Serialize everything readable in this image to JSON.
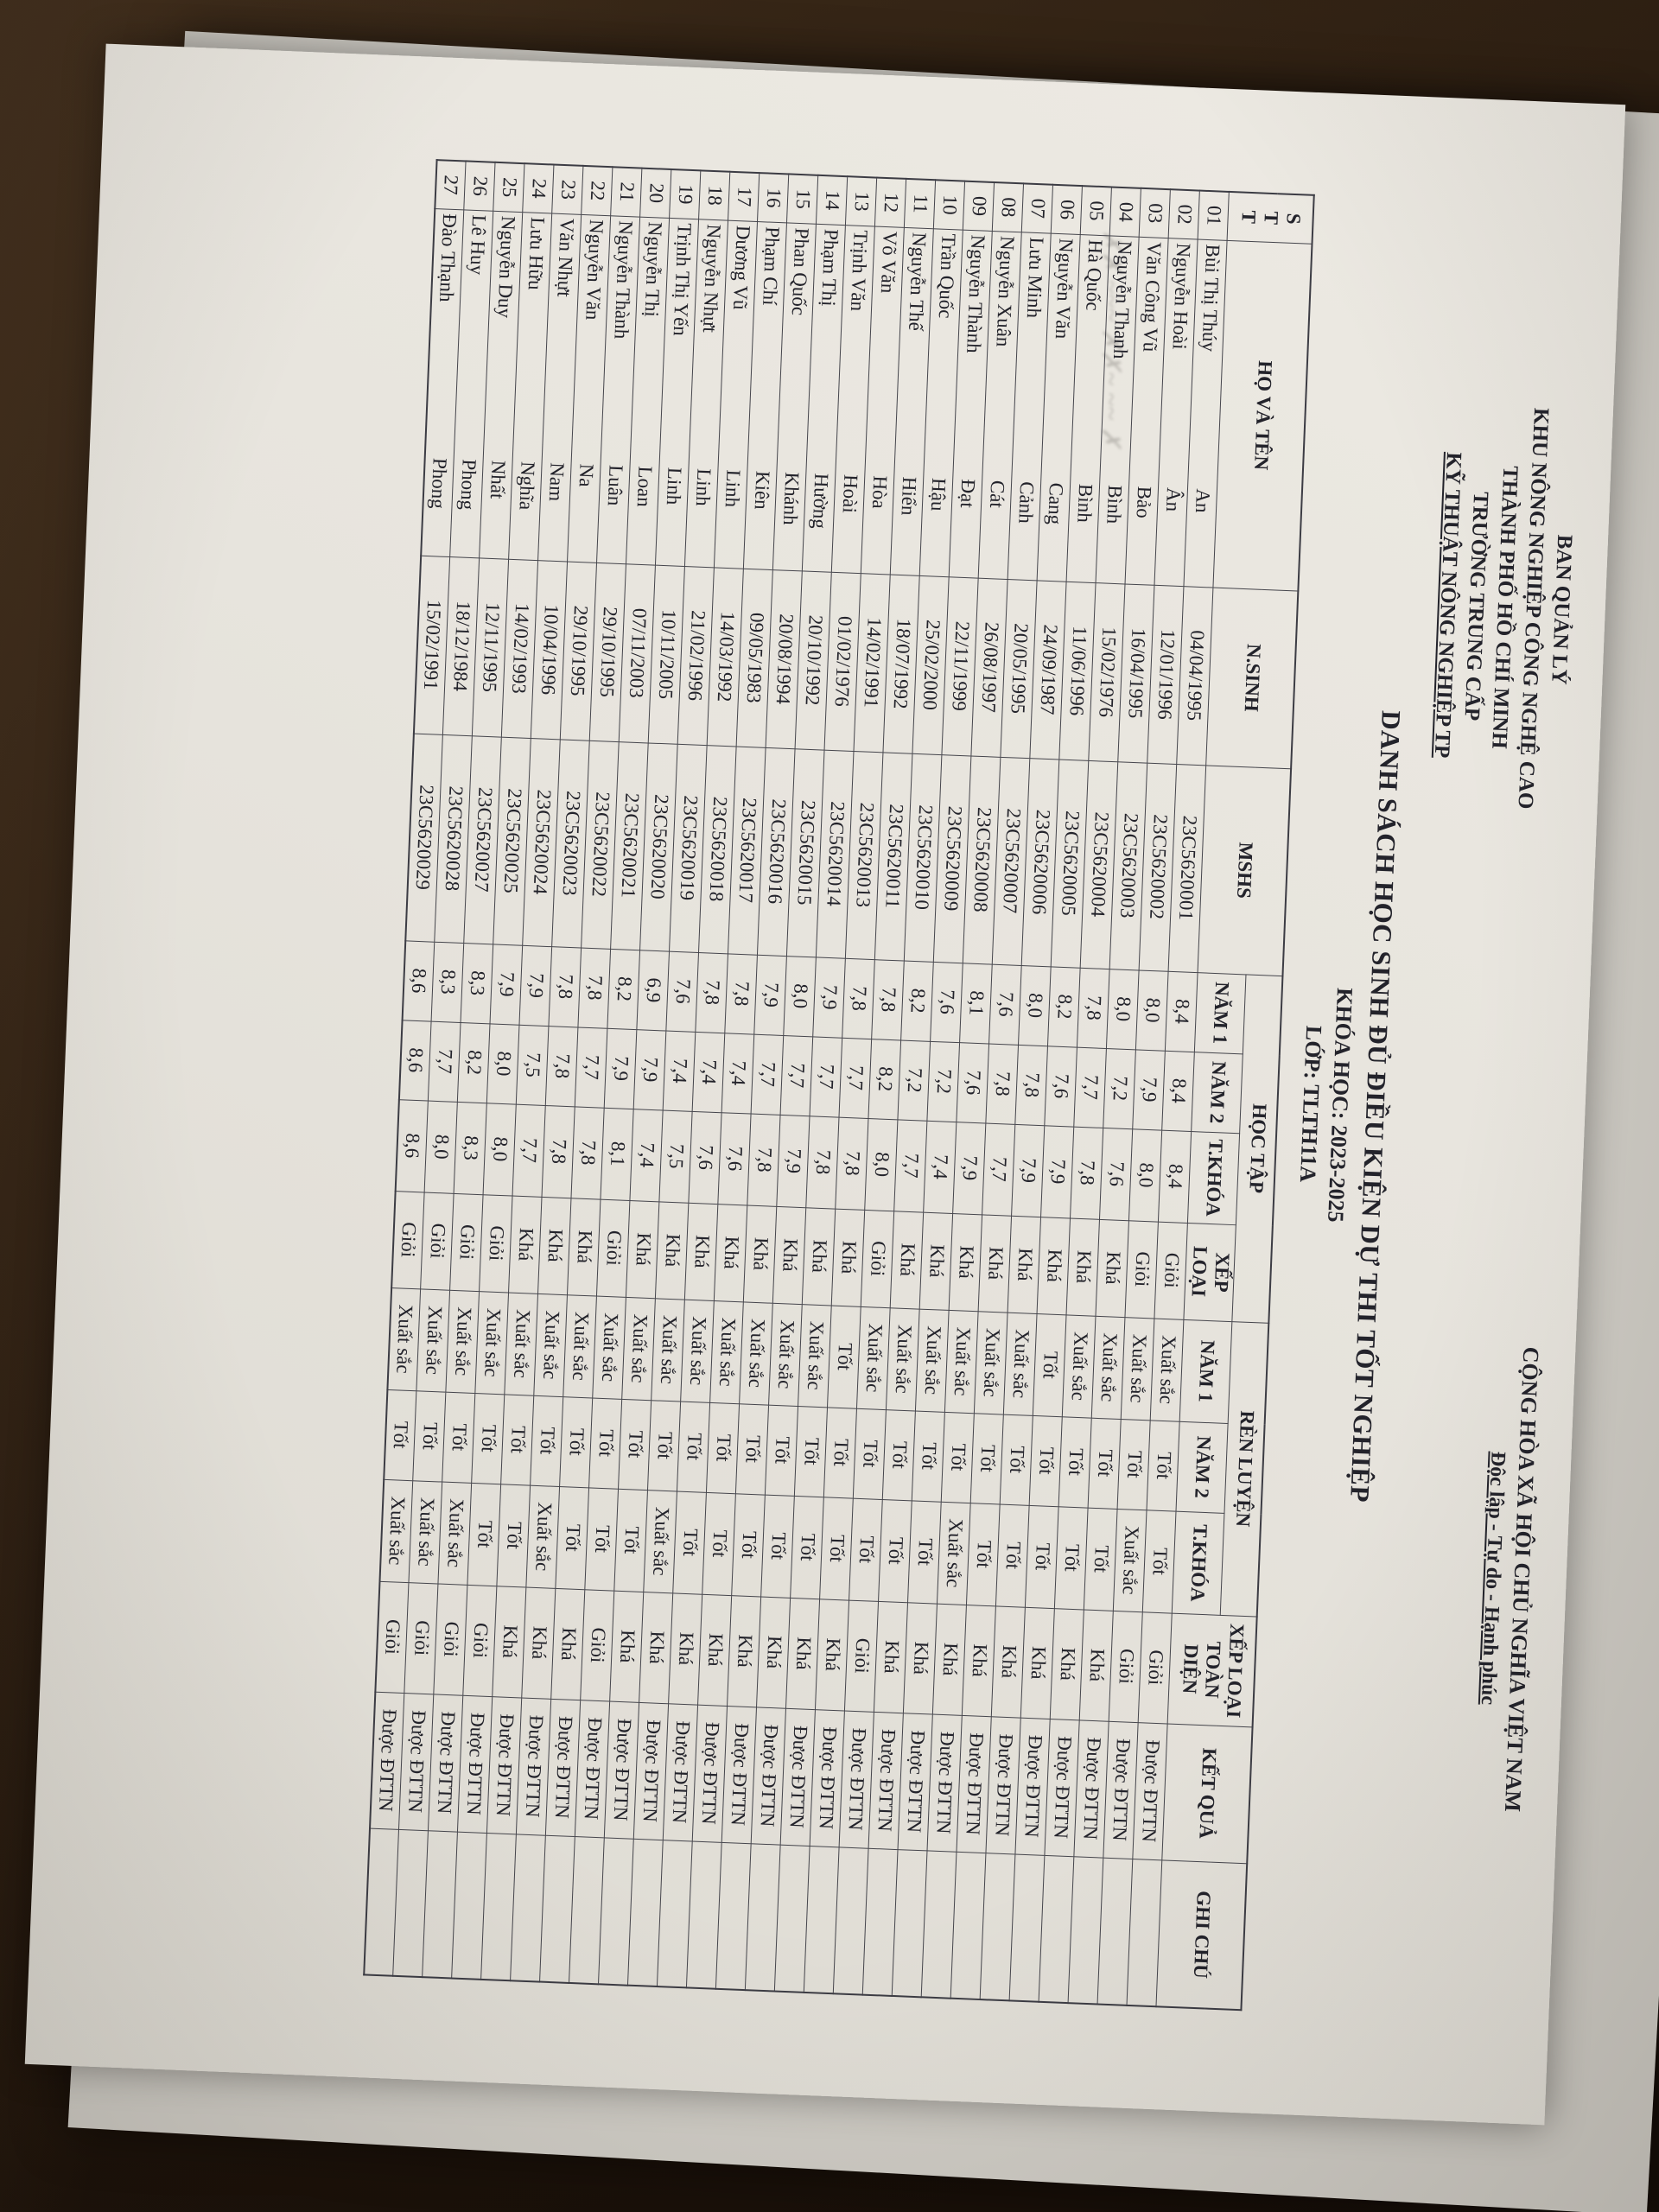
{
  "photo": {
    "background": "dark wooden desk",
    "wood_color": "#2a1c10",
    "paper_color": "#e7e4dd",
    "under_sheet_color": "#cfccc5",
    "ink_color": "#23232b",
    "rotation_deg": 92.3
  },
  "document": {
    "issuer": {
      "line1": "BAN QUẢN LÝ",
      "line2": "KHU NÔNG NGHIỆP CÔNG NGHỆ CAO",
      "line3": "THÀNH PHỐ HỒ CHÍ MINH",
      "line4": "TRƯỜNG TRUNG CẤP",
      "line5": "KỸ THUẬT NÔNG NGHIỆP TP"
    },
    "motto": {
      "line1": "CỘNG HÒA XÃ HỘI CHỦ NGHĨA VIỆT NAM",
      "line2": "Độc lập - Tự do - Hạnh phúc"
    },
    "title": "DANH SÁCH HỌC SINH ĐỦ ĐIỀU KIỆN DỰ THI TỐT NGHIỆP",
    "course_line": "KHÓA HỌC: 2023-2025",
    "class_line": "LỚP: TLTH11A",
    "bleed_through_note": "faint handwriting bleed-through marks",
    "table": {
      "headers": {
        "stt": "STT",
        "name": "HỌ VÀ TÊN",
        "birth": "N.SINH",
        "mshs": "MSHS",
        "study_group": "HỌC TẬP",
        "conduct_group": "RÈN LUYỆN",
        "year1": "NĂM 1",
        "year2": "NĂM 2",
        "course_avg": "T.KHÓA",
        "study_rank": "XẾP LOẠI",
        "conduct_year1": "NĂM 1",
        "conduct_year2": "NĂM 2",
        "conduct_course": "T.KHÓA",
        "overall_rank": "XẾP LOẠI TOÀN DIỆN",
        "result": "KẾT QUẢ",
        "notes": "GHI CHÚ"
      },
      "rows": [
        [
          "01",
          "Bùi Thị Thúy",
          "An",
          "04/04/1995",
          "23C5620001",
          "8,4",
          "8,4",
          "8,4",
          "Giỏi",
          "Xuất sắc",
          "Tốt",
          "Tốt",
          "Giỏi",
          "Được ĐTTN",
          ""
        ],
        [
          "02",
          "Nguyễn Hoài",
          "Ân",
          "12/01/1996",
          "23C5620002",
          "8,0",
          "7,9",
          "8,0",
          "Giỏi",
          "Xuất sắc",
          "Tốt",
          "Xuất sắc",
          "Giỏi",
          "Được ĐTTN",
          ""
        ],
        [
          "03",
          "Văn Công Vũ",
          "Bảo",
          "16/04/1995",
          "23C5620003",
          "8,0",
          "7,2",
          "7,6",
          "Khá",
          "Xuất sắc",
          "Tốt",
          "Tốt",
          "Khá",
          "Được ĐTTN",
          ""
        ],
        [
          "04",
          "Nguyễn Thanh",
          "Bình",
          "15/02/1976",
          "23C5620004",
          "7,8",
          "7,7",
          "7,8",
          "Khá",
          "Xuất sắc",
          "Tốt",
          "Tốt",
          "Khá",
          "Được ĐTTN",
          ""
        ],
        [
          "05",
          "Hà Quốc",
          "Bình",
          "11/06/1996",
          "23C5620005",
          "8,2",
          "7,6",
          "7,9",
          "Khá",
          "Tốt",
          "Tốt",
          "Tốt",
          "Khá",
          "Được ĐTTN",
          ""
        ],
        [
          "06",
          "Nguyễn Văn",
          "Cang",
          "24/09/1987",
          "23C5620006",
          "8,0",
          "7,8",
          "7,9",
          "Khá",
          "Xuất sắc",
          "Tốt",
          "Tốt",
          "Khá",
          "Được ĐTTN",
          ""
        ],
        [
          "07",
          "Lưu Minh",
          "Cảnh",
          "20/05/1995",
          "23C5620007",
          "7,6",
          "7,8",
          "7,7",
          "Khá",
          "Xuất sắc",
          "Tốt",
          "Tốt",
          "Khá",
          "Được ĐTTN",
          ""
        ],
        [
          "08",
          "Nguyễn Xuân",
          "Cát",
          "26/08/1997",
          "23C5620008",
          "8,1",
          "7,6",
          "7,9",
          "Khá",
          "Xuất sắc",
          "Tốt",
          "Xuất sắc",
          "Khá",
          "Được ĐTTN",
          ""
        ],
        [
          "09",
          "Nguyễn Thành",
          "Đạt",
          "22/11/1999",
          "23C5620009",
          "7,6",
          "7,2",
          "7,4",
          "Khá",
          "Xuất sắc",
          "Tốt",
          "Tốt",
          "Khá",
          "Được ĐTTN",
          ""
        ],
        [
          "10",
          "Trần Quốc",
          "Hậu",
          "25/02/2000",
          "23C5620010",
          "8,2",
          "7,2",
          "7,7",
          "Khá",
          "Xuất sắc",
          "Tốt",
          "Tốt",
          "Khá",
          "Được ĐTTN",
          ""
        ],
        [
          "11",
          "Nguyễn Thế",
          "Hiển",
          "18/07/1992",
          "23C5620011",
          "7,8",
          "8,2",
          "8,0",
          "Giỏi",
          "Xuất sắc",
          "Tốt",
          "Tốt",
          "Giỏi",
          "Được ĐTTN",
          ""
        ],
        [
          "12",
          "Võ Văn",
          "Hòa",
          "14/02/1991",
          "23C5620013",
          "7,8",
          "7,7",
          "7,8",
          "Khá",
          "Tốt",
          "Tốt",
          "Tốt",
          "Khá",
          "Được ĐTTN",
          ""
        ],
        [
          "13",
          "Trịnh Văn",
          "Hoài",
          "01/02/1976",
          "23C5620014",
          "7,9",
          "7,7",
          "7,8",
          "Khá",
          "Xuất sắc",
          "Tốt",
          "Tốt",
          "Khá",
          "Được ĐTTN",
          ""
        ],
        [
          "14",
          "Phạm Thị",
          "Hường",
          "20/10/1992",
          "23C5620015",
          "8,0",
          "7,7",
          "7,9",
          "Khá",
          "Xuất sắc",
          "Tốt",
          "Tốt",
          "Khá",
          "Được ĐTTN",
          ""
        ],
        [
          "15",
          "Phan Quốc",
          "Khánh",
          "20/08/1994",
          "23C5620016",
          "7,9",
          "7,7",
          "7,8",
          "Khá",
          "Xuất sắc",
          "Tốt",
          "Tốt",
          "Khá",
          "Được ĐTTN",
          ""
        ],
        [
          "16",
          "Phạm Chí",
          "Kiên",
          "09/05/1983",
          "23C5620017",
          "7,8",
          "7,4",
          "7,6",
          "Khá",
          "Xuất sắc",
          "Tốt",
          "Tốt",
          "Khá",
          "Được ĐTTN",
          ""
        ],
        [
          "17",
          "Dương Vũ",
          "Linh",
          "14/03/1992",
          "23C5620018",
          "7,8",
          "7,4",
          "7,6",
          "Khá",
          "Xuất sắc",
          "Tốt",
          "Tốt",
          "Khá",
          "Được ĐTTN",
          ""
        ],
        [
          "18",
          "Nguyễn Nhựt",
          "Linh",
          "21/02/1996",
          "23C5620019",
          "7,6",
          "7,4",
          "7,5",
          "Khá",
          "Xuất sắc",
          "Tốt",
          "Xuất sắc",
          "Khá",
          "Được ĐTTN",
          ""
        ],
        [
          "19",
          "Trịnh Thị Yến",
          "Linh",
          "10/11/2005",
          "23C5620020",
          "6,9",
          "7,9",
          "7,4",
          "Khá",
          "Xuất sắc",
          "Tốt",
          "Tốt",
          "Khá",
          "Được ĐTTN",
          ""
        ],
        [
          "20",
          "Nguyễn Thị",
          "Loan",
          "07/11/2003",
          "23C5620021",
          "8,2",
          "7,9",
          "8,1",
          "Giỏi",
          "Xuất sắc",
          "Tốt",
          "Tốt",
          "Giỏi",
          "Được ĐTTN",
          ""
        ],
        [
          "21",
          "Nguyễn Thành",
          "Luân",
          "29/10/1995",
          "23C5620022",
          "7,8",
          "7,7",
          "7,8",
          "Khá",
          "Xuất sắc",
          "Tốt",
          "Tốt",
          "Khá",
          "Được ĐTTN",
          ""
        ],
        [
          "22",
          "Nguyễn Văn",
          "Na",
          "29/10/1995",
          "23C5620023",
          "7,8",
          "7,8",
          "7,8",
          "Khá",
          "Xuất sắc",
          "Tốt",
          "Xuất sắc",
          "Khá",
          "Được ĐTTN",
          ""
        ],
        [
          "23",
          "Văn Nhựt",
          "Nam",
          "10/04/1996",
          "23C5620024",
          "7,9",
          "7,5",
          "7,7",
          "Khá",
          "Xuất sắc",
          "Tốt",
          "Tốt",
          "Khá",
          "Được ĐTTN",
          ""
        ],
        [
          "24",
          "Lưu Hữu",
          "Nghĩa",
          "14/02/1993",
          "23C5620025",
          "7,9",
          "8,0",
          "8,0",
          "Giỏi",
          "Xuất sắc",
          "Tốt",
          "Tốt",
          "Giỏi",
          "Được ĐTTN",
          ""
        ],
        [
          "25",
          "Nguyễn Duy",
          "Nhất",
          "12/11/1995",
          "23C5620027",
          "8,3",
          "8,2",
          "8,3",
          "Giỏi",
          "Xuất sắc",
          "Tốt",
          "Xuất sắc",
          "Giỏi",
          "Được ĐTTN",
          ""
        ],
        [
          "26",
          "Lê Huy",
          "Phong",
          "18/12/1984",
          "23C5620028",
          "8,3",
          "7,7",
          "8,0",
          "Giỏi",
          "Xuất sắc",
          "Tốt",
          "Xuất sắc",
          "Giỏi",
          "Được ĐTTN",
          ""
        ],
        [
          "27",
          "Đào Thạnh",
          "Phong",
          "15/02/1991",
          "23C5620029",
          "8,6",
          "8,6",
          "8,6",
          "Giỏi",
          "Xuất sắc",
          "Tốt",
          "Xuất sắc",
          "Giỏi",
          "Được ĐTTN",
          ""
        ]
      ]
    }
  }
}
